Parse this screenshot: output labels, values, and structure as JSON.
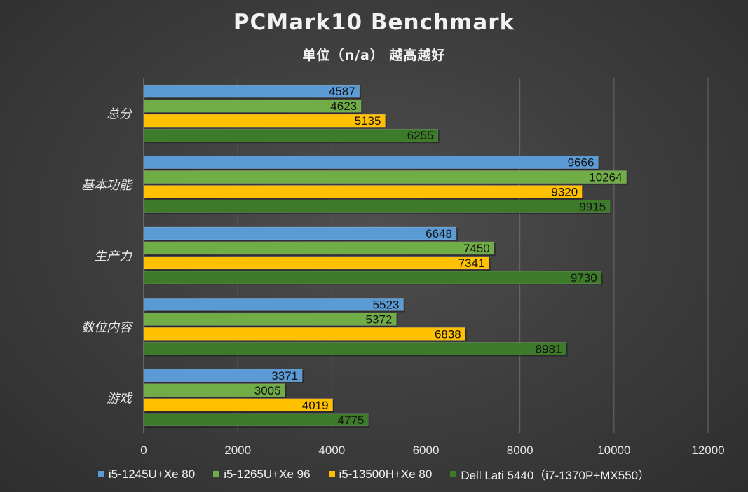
{
  "chart_data": {
    "type": "bar",
    "orientation": "horizontal",
    "title": "PCMark10 Benchmark",
    "subtitle": "单位（n/a） 越高越好",
    "categories": [
      "总分",
      "基本功能",
      "生产力",
      "数位内容",
      "游戏"
    ],
    "series": [
      {
        "name": "i5-1245U+Xe 80",
        "color": "#5b9bd5",
        "values": [
          4587,
          9666,
          6648,
          5523,
          3371
        ]
      },
      {
        "name": "i5-1265U+Xe 96",
        "color": "#70ad47",
        "values": [
          4623,
          10264,
          7450,
          5372,
          3005
        ]
      },
      {
        "name": "i5-13500H+Xe 80",
        "color": "#ffc000",
        "values": [
          5135,
          9320,
          7341,
          6838,
          4019
        ]
      },
      {
        "name": "Dell Lati 5440（i7-1370P+MX550）",
        "color": "#3d7a2a",
        "values": [
          6255,
          9915,
          9730,
          8981,
          4775
        ]
      }
    ],
    "xlim": [
      0,
      12000
    ],
    "xticks": [
      0,
      2000,
      4000,
      6000,
      8000,
      10000,
      12000
    ],
    "grid": true,
    "legend_position": "bottom"
  }
}
